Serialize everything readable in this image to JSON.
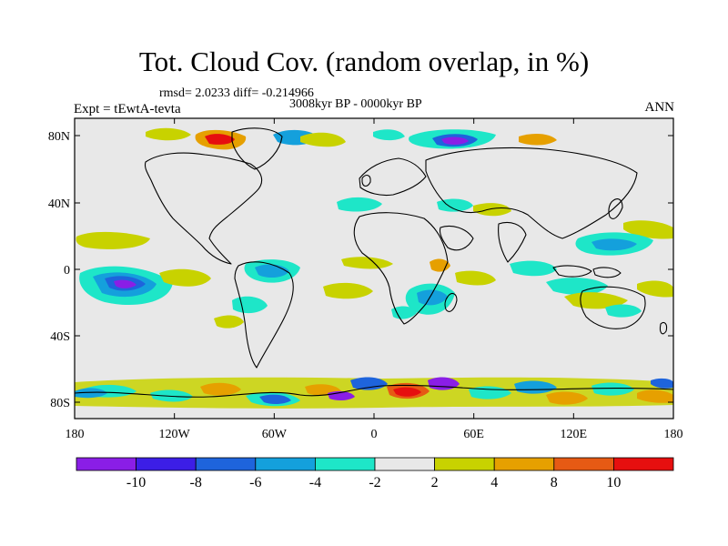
{
  "header": {
    "title": "Tot. Cloud Cov. (random overlap, in %)",
    "stats": "rmsd= 2.0233 diff= -0.214966",
    "subtitle": "3008kyr BP - 0000kyr BP",
    "experiment": "Expt = tEwtA-tevta",
    "season": "ANN"
  },
  "map": {
    "x_ticks": [
      "180",
      "120W",
      "60W",
      "0",
      "60E",
      "120E",
      "180"
    ],
    "y_ticks": [
      "80N",
      "40N",
      "0",
      "40S",
      "80S"
    ],
    "background_color": "#e8e8e8"
  },
  "colorbar": {
    "labels": [
      "-10",
      "-8",
      "-6",
      "-4",
      "-2",
      "2",
      "4",
      "8",
      "10"
    ],
    "colors": [
      "#8a1ee6",
      "#3c1ee6",
      "#1e64dc",
      "#14a0dc",
      "#1ee6c8",
      "#e8e8e8",
      "#c8d200",
      "#e6a000",
      "#e65a14",
      "#e60f0f"
    ]
  }
}
